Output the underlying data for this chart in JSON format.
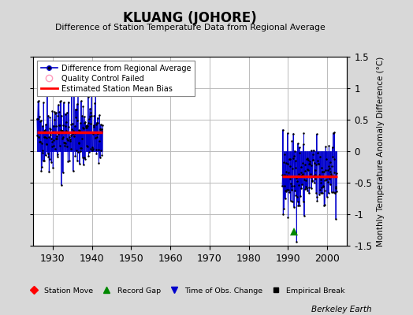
{
  "title": "KLUANG (JOHORE)",
  "subtitle": "Difference of Station Temperature Data from Regional Average",
  "ylabel": "Monthly Temperature Anomaly Difference (°C)",
  "xlim": [
    1925,
    2005
  ],
  "ylim": [
    -1.5,
    1.5
  ],
  "xticks": [
    1930,
    1940,
    1950,
    1960,
    1970,
    1980,
    1990,
    2000
  ],
  "yticks": [
    -1.5,
    -1.0,
    -0.5,
    0.0,
    0.5,
    1.0,
    1.5
  ],
  "yticklabels": [
    "-1.5",
    "-1",
    "-0.5",
    "0",
    "0.5",
    "1",
    "1.5"
  ],
  "bg_color": "#d8d8d8",
  "plot_bg_color": "#ffffff",
  "grid_color": "#bbbbbb",
  "segment1_start": 1926.0,
  "segment1_end": 1942.75,
  "segment1_bias": 0.3,
  "segment2_start": 1988.5,
  "segment2_end": 2002.5,
  "segment2_bias": -0.4,
  "record_gap_x": 1991.5,
  "record_gap_y": -1.27,
  "line_color": "#0000cc",
  "bias_color": "#ff0000",
  "marker_color": "#000000",
  "seed": 42
}
